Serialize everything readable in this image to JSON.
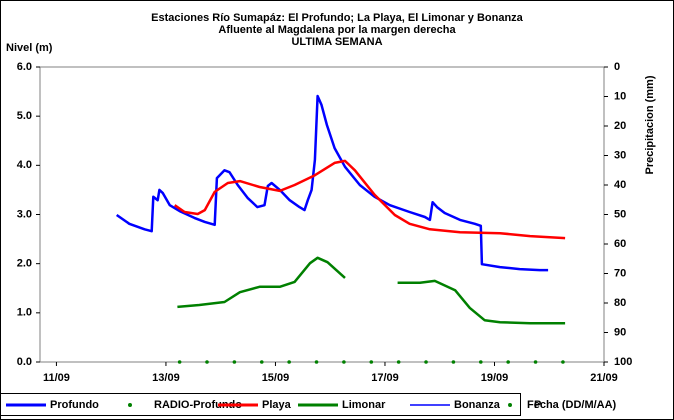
{
  "chart_data": {
    "type": "line",
    "title": [
      "Estaciones Río Sumapáz: El Profundo; La Playa, El Limonar y Bonanza",
      "Afluente al Magdalena por la margen derecha",
      "ULTIMA SEMANA"
    ],
    "ylabel": "Nivel (m)",
    "y2label": "Precipitacion (mm)",
    "xlabel": "Fecha (DD/M/AA)",
    "xlim": [
      10.7,
      21
    ],
    "xticks": [
      {
        "value": 11,
        "label": "11/09"
      },
      {
        "value": 13,
        "label": "13/09"
      },
      {
        "value": 15,
        "label": "15/09"
      },
      {
        "value": 17,
        "label": "17/09"
      },
      {
        "value": 19,
        "label": "19/09"
      },
      {
        "value": 21,
        "label": "21/09"
      }
    ],
    "ylim": [
      0,
      6
    ],
    "yticks": [
      {
        "value": 0,
        "label": "0.0"
      },
      {
        "value": 1,
        "label": "1.0"
      },
      {
        "value": 2,
        "label": "2.0"
      },
      {
        "value": 3,
        "label": "3.0"
      },
      {
        "value": 4,
        "label": "4.0"
      },
      {
        "value": 5,
        "label": "5.0"
      },
      {
        "value": 6,
        "label": "6.0"
      }
    ],
    "y2lim": [
      100,
      0
    ],
    "y2ticks": [
      0,
      10,
      20,
      30,
      40,
      50,
      60,
      70,
      80,
      90,
      100
    ],
    "grid": false,
    "series": [
      {
        "name": "Profundo",
        "color": "#0000ff",
        "style": "line",
        "x": [
          12.1,
          12.33,
          12.61,
          12.74,
          12.77,
          12.85,
          12.88,
          12.94,
          13.07,
          13.25,
          13.52,
          13.71,
          13.89,
          13.93,
          14.07,
          14.16,
          14.31,
          14.49,
          14.67,
          14.8,
          14.86,
          14.93,
          15.08,
          15.26,
          15.44,
          15.53,
          15.59,
          15.66,
          15.72,
          15.77,
          15.84,
          15.94,
          16.08,
          16.27,
          16.54,
          16.81,
          17.09,
          17.45,
          17.73,
          17.82,
          17.87,
          17.95,
          18.09,
          18.37,
          18.64,
          18.75,
          18.77,
          19.1,
          19.46,
          19.83,
          19.98
        ],
        "values": [
          2.99,
          2.81,
          2.7,
          2.66,
          3.36,
          3.29,
          3.5,
          3.44,
          3.19,
          3.07,
          2.93,
          2.85,
          2.79,
          3.74,
          3.9,
          3.86,
          3.6,
          3.34,
          3.15,
          3.19,
          3.58,
          3.64,
          3.5,
          3.29,
          3.15,
          3.09,
          3.29,
          3.5,
          4.11,
          5.41,
          5.23,
          4.82,
          4.35,
          3.97,
          3.6,
          3.36,
          3.19,
          3.05,
          2.95,
          2.89,
          3.25,
          3.15,
          3.03,
          2.89,
          2.81,
          2.77,
          1.99,
          1.93,
          1.89,
          1.87,
          1.87
        ]
      },
      {
        "name": "RADIO-Profundo",
        "color": "#008000",
        "style": "dot",
        "x": [
          13.25,
          13.75,
          14.25,
          14.75,
          15.25,
          15.75,
          16.25,
          16.75,
          17.25,
          17.75,
          18.25,
          18.75,
          19.25,
          19.75,
          20.25
        ],
        "values": [
          0,
          0,
          0,
          0,
          0,
          0,
          0,
          0,
          0,
          0,
          0,
          0,
          0,
          0,
          0
        ]
      },
      {
        "name": "Playa",
        "color": "#ff0000",
        "style": "line",
        "x": [
          13.16,
          13.34,
          13.58,
          13.71,
          13.89,
          14.13,
          14.35,
          14.71,
          15.08,
          15.35,
          15.72,
          16.08,
          16.27,
          16.45,
          16.81,
          17.18,
          17.45,
          17.82,
          18.37,
          19.1,
          19.65,
          20.29
        ],
        "values": [
          3.19,
          3.05,
          3.01,
          3.09,
          3.46,
          3.64,
          3.68,
          3.56,
          3.48,
          3.6,
          3.8,
          4.05,
          4.09,
          3.9,
          3.4,
          2.99,
          2.81,
          2.7,
          2.64,
          2.62,
          2.56,
          2.52
        ]
      },
      {
        "name": "Limonar",
        "color": "#008000",
        "style": "line",
        "x": [
          13.21,
          13.61,
          14.07,
          14.35,
          14.71,
          15.08,
          15.35,
          15.63,
          15.77,
          15.95,
          16.27,
          16.75,
          17.23,
          17.64,
          17.91,
          18.28,
          18.55,
          18.82,
          19.1,
          19.65,
          20.29
        ],
        "values": [
          1.12,
          1.16,
          1.22,
          1.42,
          1.53,
          1.53,
          1.63,
          2.01,
          2.12,
          2.03,
          1.71,
          null,
          1.61,
          1.61,
          1.65,
          1.46,
          1.1,
          0.85,
          0.81,
          0.79,
          0.79
        ]
      },
      {
        "name": "Bonanza",
        "color": "#0000ff",
        "style": "thin",
        "x": [],
        "values": []
      },
      {
        "name": "P",
        "color": "#008000",
        "style": "dot",
        "axis": "y2",
        "x": [],
        "values": []
      }
    ]
  }
}
